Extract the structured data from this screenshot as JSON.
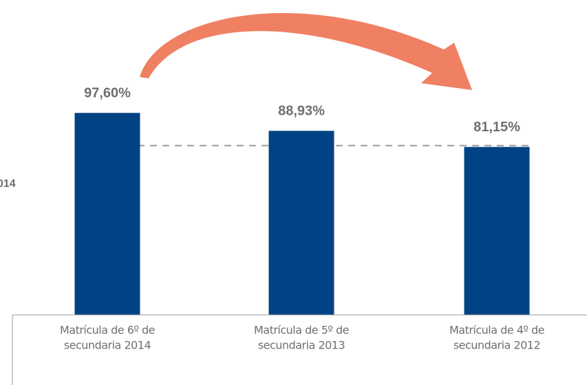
{
  "chart_data": {
    "type": "bar",
    "categories": [
      [
        "Matrícula de 6º de",
        "secundaria 2014"
      ],
      [
        "Matrícula de 5º de",
        "secundaria 2013"
      ],
      [
        "Matrícula de 4º de",
        "secundaria 2012"
      ]
    ],
    "values": [
      97.6,
      88.93,
      81.15
    ],
    "value_labels": [
      "97,60%",
      "88,93%",
      "81,15%"
    ],
    "color": "#004385",
    "ylim": [
      0,
      100
    ],
    "annotations": [
      "014"
    ]
  }
}
